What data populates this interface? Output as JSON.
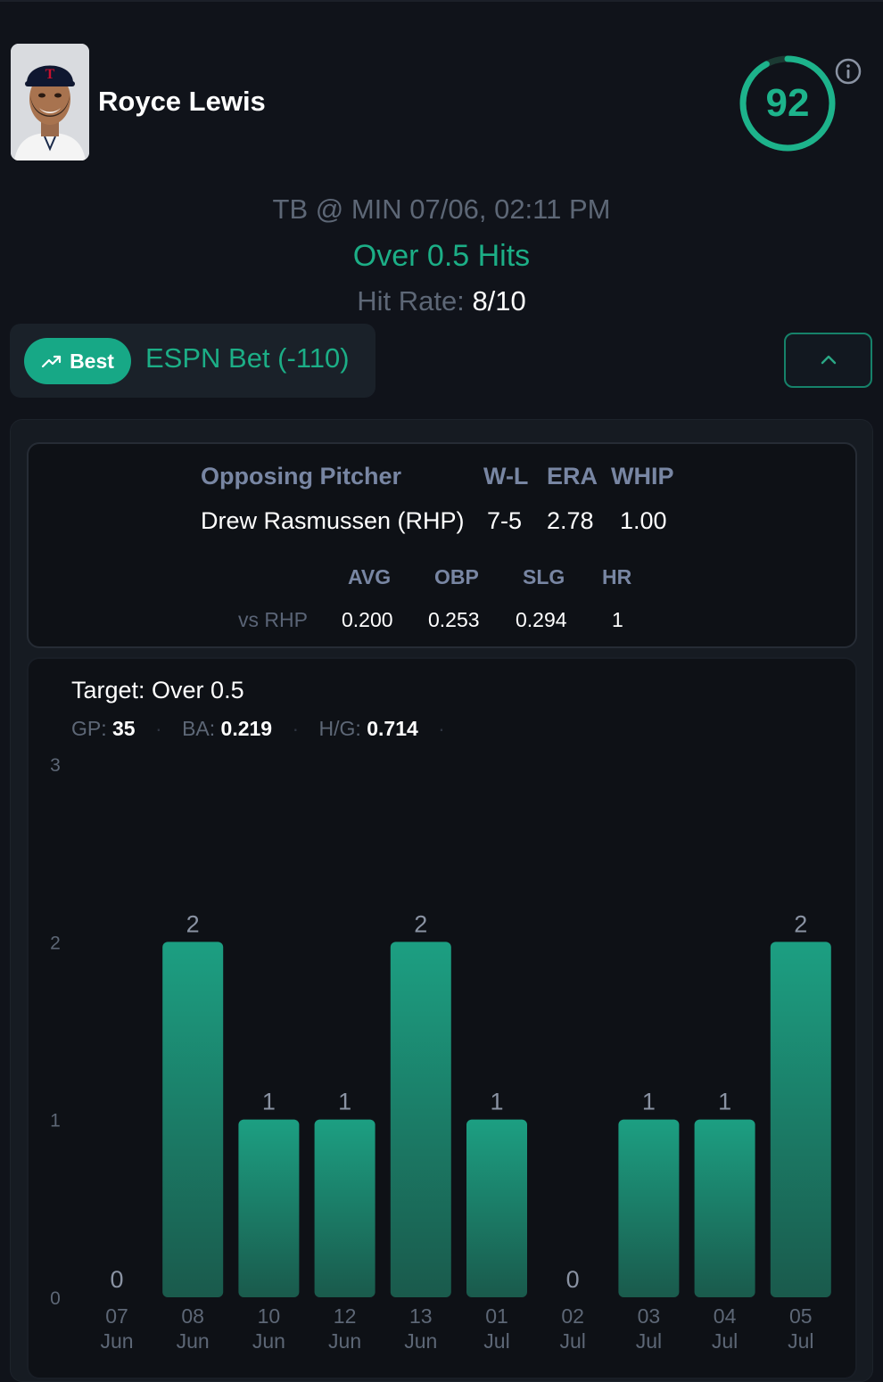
{
  "player": {
    "name": "Royce Lewis",
    "photo_icon": "player-photo",
    "score": "92",
    "score_ratio": 0.92,
    "accent": "#1db38b"
  },
  "game": {
    "matchup": "TB @ MIN 07/06, 02:11 PM",
    "prop": "Over 0.5 Hits",
    "hit_rate_label": "Hit Rate:",
    "hit_rate_value": "8/10"
  },
  "best": {
    "badge_label": "Best",
    "badge_icon": "trending-up-icon",
    "bookmaker": "ESPN Bet (-110)"
  },
  "pitcher": {
    "header": [
      "Opposing Pitcher",
      "W-L",
      "ERA",
      "WHIP"
    ],
    "name": "Drew Rasmussen (RHP)",
    "wl": "7-5",
    "era": "2.78",
    "whip": "1.00",
    "split_headers": [
      "AVG",
      "OBP",
      "SLG",
      "HR"
    ],
    "split_label": "vs RHP",
    "split_values": [
      "0.200",
      "0.253",
      "0.294",
      "1"
    ]
  },
  "summary": {
    "target": "Target: Over 0.5",
    "gp_label": "GP:",
    "gp": "35",
    "ba_label": "BA:",
    "ba": "0.219",
    "hg_label": "H/G:",
    "hg": "0.714"
  },
  "chart_data": {
    "type": "bar",
    "categories": [
      [
        "07",
        "Jun"
      ],
      [
        "08",
        "Jun"
      ],
      [
        "10",
        "Jun"
      ],
      [
        "12",
        "Jun"
      ],
      [
        "13",
        "Jun"
      ],
      [
        "01",
        "Jul"
      ],
      [
        "02",
        "Jul"
      ],
      [
        "03",
        "Jul"
      ],
      [
        "04",
        "Jul"
      ],
      [
        "05",
        "Jul"
      ]
    ],
    "values": [
      0,
      2,
      1,
      1,
      2,
      1,
      0,
      1,
      1,
      2
    ],
    "ylim": [
      0,
      3
    ],
    "yticks": [
      0,
      1,
      2,
      3
    ],
    "grid": false,
    "legend": "none",
    "bar_color_top": "#1c9f82",
    "bar_color_bottom": "#1a5a4c"
  }
}
